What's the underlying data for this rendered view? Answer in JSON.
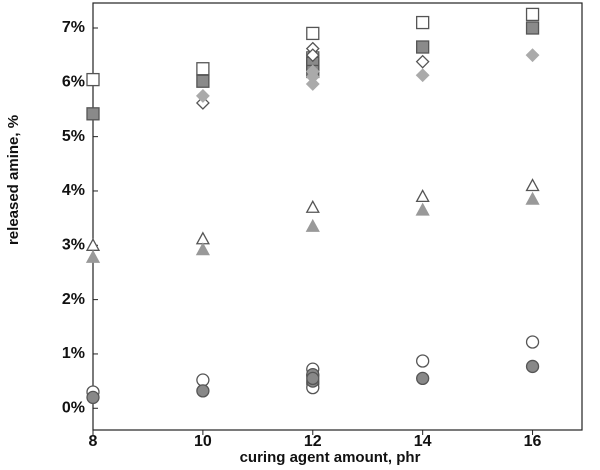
{
  "chart_data": {
    "type": "scatter",
    "x_label": "curing agent amount, phr",
    "y_label": "released amine, %",
    "xlim": [
      8,
      16.9
    ],
    "ylim": [
      -0.4,
      7.46
    ],
    "xticks": [
      8,
      10,
      12,
      14,
      16
    ],
    "yticks": [
      {
        "value": 0,
        "label": "0%"
      },
      {
        "value": 1,
        "label": "1%"
      },
      {
        "value": 2,
        "label": "2%"
      },
      {
        "value": 3,
        "label": "3%"
      },
      {
        "value": 4,
        "label": "4%"
      },
      {
        "value": 5,
        "label": "5%"
      },
      {
        "value": 6,
        "label": "6%"
      },
      {
        "value": 7,
        "label": "7%"
      }
    ],
    "series": [
      {
        "marker": "square",
        "color": "#ffffff",
        "stroke": "#555555",
        "x": [
          8,
          10,
          12,
          12,
          12,
          14,
          16
        ],
        "values": [
          6.05,
          6.25,
          6.9,
          6.45,
          6.3,
          7.1,
          7.25
        ]
      },
      {
        "marker": "square",
        "color": "#8a8a8a",
        "stroke": "#555555",
        "x": [
          8,
          10,
          12,
          12,
          14,
          16
        ],
        "values": [
          5.42,
          6.02,
          6.35,
          6.2,
          6.65,
          7.0
        ]
      },
      {
        "marker": "diamond",
        "color": "#ffffff",
        "stroke": "#555555",
        "x": [
          10,
          12,
          12,
          14
        ],
        "values": [
          5.62,
          6.62,
          6.5,
          6.38
        ]
      },
      {
        "marker": "diamond",
        "color": "#aaaaaa",
        "stroke": "#aaaaaa",
        "x": [
          10,
          12,
          12,
          12,
          14,
          16
        ],
        "values": [
          5.75,
          5.97,
          6.1,
          6.2,
          6.13,
          6.5
        ]
      },
      {
        "marker": "triangle",
        "color": "#ffffff",
        "stroke": "#555555",
        "x": [
          8,
          10,
          12,
          14,
          16
        ],
        "values": [
          3.0,
          3.12,
          3.7,
          3.9,
          4.1
        ]
      },
      {
        "marker": "triangle",
        "color": "#999999",
        "stroke": "#999999",
        "x": [
          8,
          10,
          12,
          14,
          16
        ],
        "values": [
          2.78,
          2.92,
          3.35,
          3.65,
          3.85
        ]
      },
      {
        "marker": "circle",
        "color": "#ffffff",
        "stroke": "#555555",
        "x": [
          8,
          10,
          12,
          12,
          12,
          12,
          14,
          16
        ],
        "values": [
          0.3,
          0.52,
          0.72,
          0.6,
          0.45,
          0.38,
          0.87,
          1.22
        ]
      },
      {
        "marker": "circle",
        "color": "#888888",
        "stroke": "#555555",
        "x": [
          8,
          10,
          12,
          12,
          12,
          14,
          16
        ],
        "values": [
          0.2,
          0.32,
          0.5,
          0.62,
          0.55,
          0.55,
          0.77
        ]
      }
    ]
  }
}
